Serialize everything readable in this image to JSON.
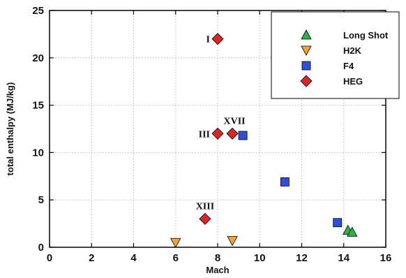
{
  "chart_data": {
    "type": "scatter",
    "xlabel": "Mach",
    "ylabel": "total enthalpy (MJ/kg)",
    "xlim": [
      0,
      16
    ],
    "ylim": [
      0,
      25
    ],
    "xticks": [
      0,
      2,
      4,
      6,
      8,
      10,
      12,
      14,
      16
    ],
    "yticks": [
      0,
      5,
      10,
      15,
      20,
      25
    ],
    "grid": true,
    "legend_position": "top-right",
    "series": [
      {
        "name": "Long Shot",
        "marker": "triangle-up",
        "color": "#2db34a",
        "points": [
          {
            "x": 14.2,
            "y": 1.8
          },
          {
            "x": 14.4,
            "y": 1.6
          }
        ]
      },
      {
        "name": "H2K",
        "marker": "triangle-down",
        "color": "#f5a23a",
        "points": [
          {
            "x": 6.0,
            "y": 0.5
          },
          {
            "x": 8.7,
            "y": 0.7
          }
        ]
      },
      {
        "name": "F4",
        "marker": "square",
        "color": "#2f4fd8",
        "points": [
          {
            "x": 9.2,
            "y": 11.8
          },
          {
            "x": 11.2,
            "y": 6.9
          },
          {
            "x": 13.7,
            "y": 2.6
          }
        ]
      },
      {
        "name": "HEG",
        "marker": "diamond",
        "color": "#d9262a",
        "points": [
          {
            "x": 8.0,
            "y": 22.0
          },
          {
            "x": 8.0,
            "y": 12.0
          },
          {
            "x": 8.7,
            "y": 12.0
          },
          {
            "x": 7.4,
            "y": 3.0
          }
        ]
      }
    ],
    "annotations": [
      {
        "text": "I",
        "x": 8.0,
        "y": 22.0
      },
      {
        "text": "III",
        "x": 8.0,
        "y": 12.0
      },
      {
        "text": "XVII",
        "x": 8.7,
        "y": 12.0
      },
      {
        "text": "XIII",
        "x": 7.4,
        "y": 3.0
      }
    ]
  }
}
